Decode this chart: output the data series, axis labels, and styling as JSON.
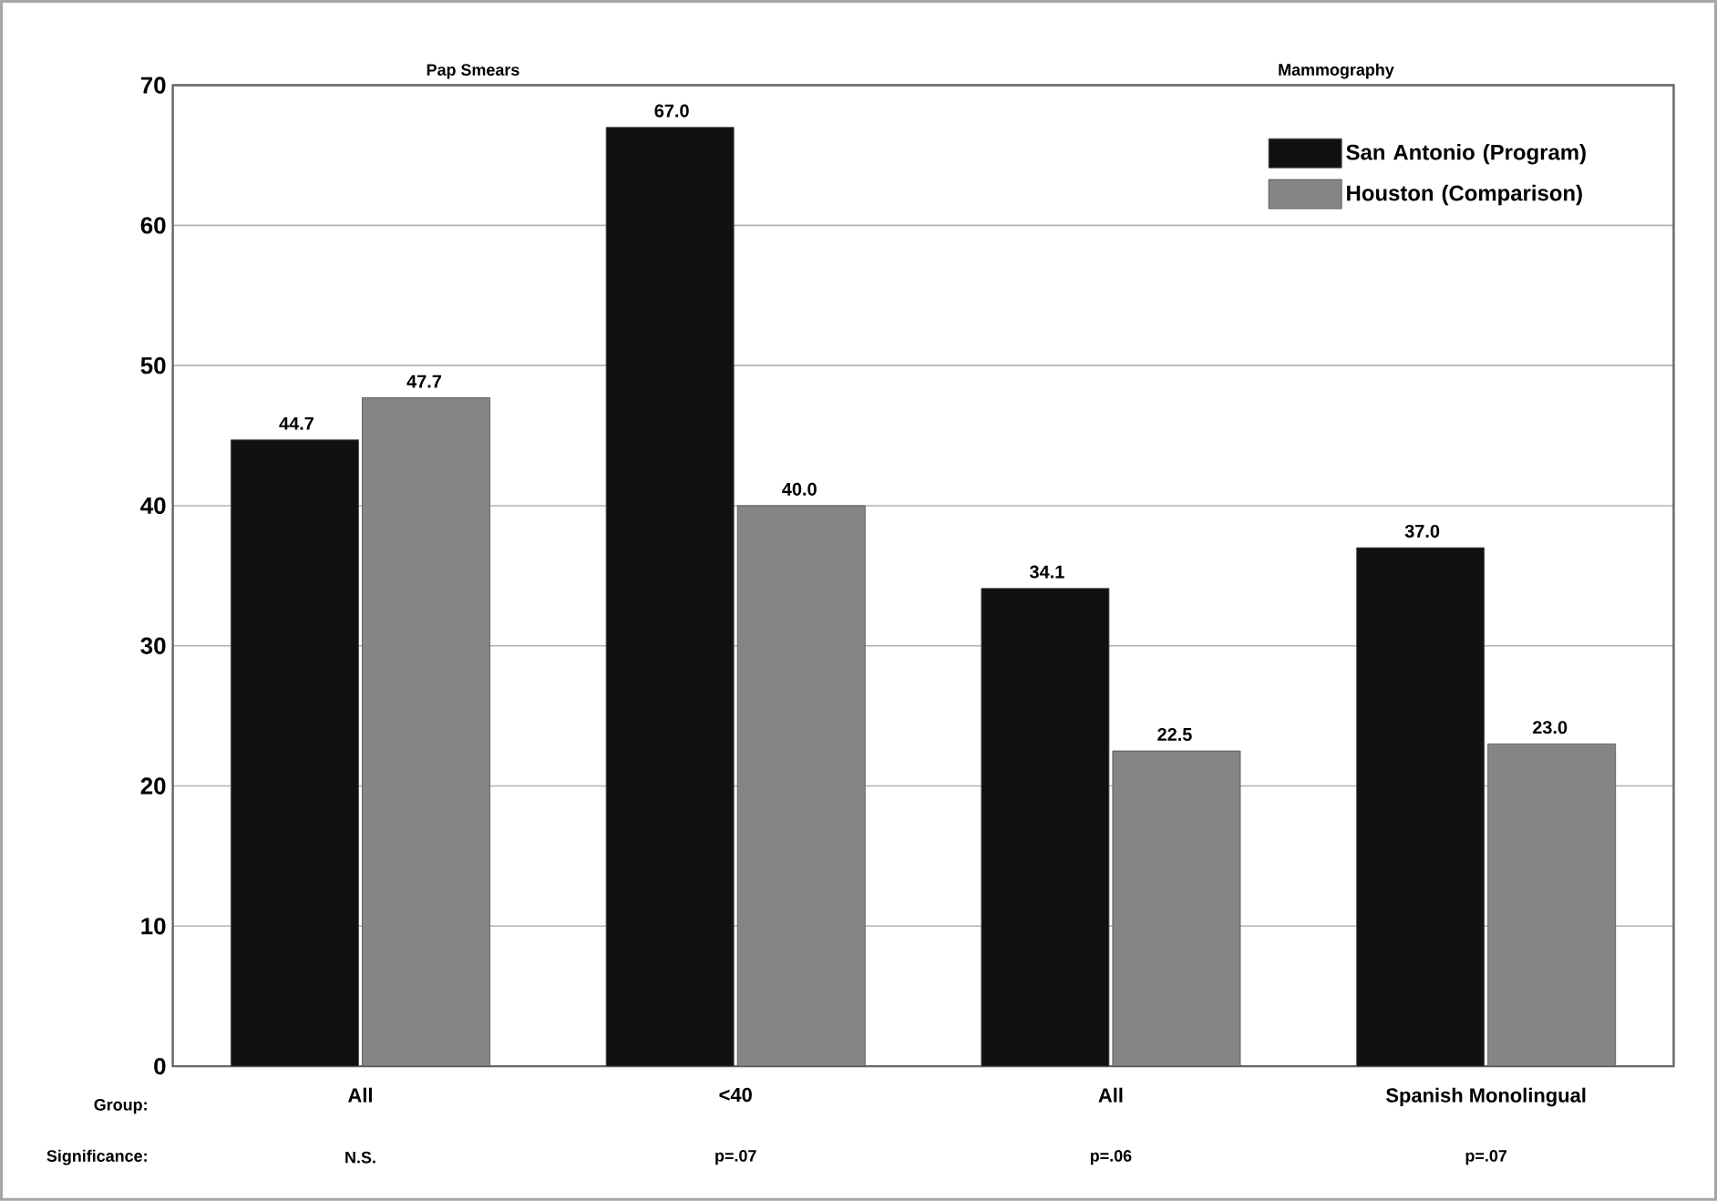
{
  "chart_data": {
    "type": "bar",
    "categories": [
      "All",
      "<40",
      "All",
      "Spanish Monolingual"
    ],
    "xlabel": "Group:",
    "series": [
      {
        "name": "San Antonio (Program)",
        "color": "#111111",
        "values": [
          44.7,
          67,
          34.1,
          37
        ],
        "value_labels": [
          "44.7",
          "67.0",
          "34.1",
          "37.0"
        ]
      },
      {
        "name": "Houston (Comparison)",
        "color": "#858585",
        "values": [
          47.7,
          40,
          22.5,
          23
        ],
        "value_labels": [
          "47.7",
          "40.0",
          "22.5",
          "23.0"
        ]
      }
    ],
    "annotations": [
      "Pap Smears",
      "Mammography",
      "Significance:",
      "N.S.",
      "p=.07",
      "p=.06",
      "p=.07"
    ],
    "ylim": [
      0,
      70
    ],
    "yticks": [
      0,
      10,
      20,
      30,
      40,
      50,
      60,
      70
    ],
    "grid": "y",
    "legend": "top right"
  }
}
